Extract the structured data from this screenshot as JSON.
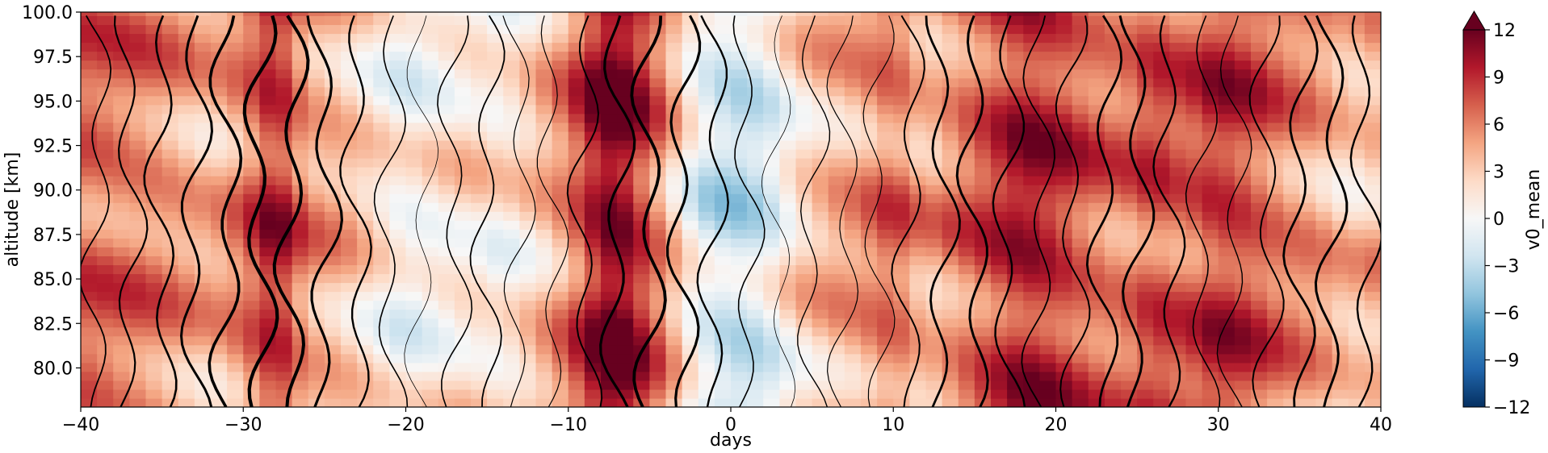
{
  "chart_data": {
    "type": "heatmap",
    "xlabel": "days",
    "ylabel": "altitude [km]",
    "colorbar_label": "v0_mean",
    "xlim": [
      -40,
      40
    ],
    "ylim": [
      77.8,
      100.0
    ],
    "x_ticks": [
      -40,
      -30,
      -20,
      -10,
      0,
      10,
      20,
      30,
      40
    ],
    "x_tick_labels": [
      "−40",
      "−30",
      "−20",
      "−10",
      "0",
      "10",
      "20",
      "30",
      "40"
    ],
    "y_ticks": [
      80.0,
      82.5,
      85.0,
      87.5,
      90.0,
      92.5,
      95.0,
      97.5,
      100.0
    ],
    "y_tick_labels": [
      "80.0",
      "82.5",
      "85.0",
      "87.5",
      "90.0",
      "92.5",
      "95.0",
      "97.5",
      "100.0"
    ],
    "colorbar_ticks": [
      -12,
      -9,
      -6,
      -3,
      0,
      3,
      6,
      9,
      12
    ],
    "colorbar_tick_labels": [
      "−12",
      "−9",
      "−6",
      "−3",
      "0",
      "3",
      "6",
      "9",
      "12"
    ],
    "colorbar_range": [
      -12,
      12
    ],
    "colorbar_extend": "max",
    "colormap": "RdBu_r",
    "colormap_stops": [
      "#053061",
      "#2166ac",
      "#4393c3",
      "#92c5de",
      "#d1e5f0",
      "#f7f7f7",
      "#fddbc7",
      "#f4a582",
      "#d6604d",
      "#b2182b",
      "#67001f"
    ],
    "contour_color": "#000000",
    "days": [
      -40,
      -36,
      -32,
      -30,
      -28,
      -26,
      -24,
      -22,
      -20,
      -18,
      -16,
      -14,
      -12,
      -10,
      -8,
      -7,
      -6,
      -4,
      -2,
      0,
      2,
      4,
      6,
      8,
      10,
      12,
      14,
      16,
      18,
      20,
      22,
      24,
      26,
      28,
      30,
      32,
      34,
      36,
      38,
      40
    ],
    "altitudes": [
      78,
      80,
      82,
      84,
      86,
      88,
      90,
      92,
      94,
      96,
      98,
      100
    ],
    "v0_mean_profile_by_day": [
      7,
      6,
      4,
      6,
      10,
      5,
      4,
      2,
      0,
      1,
      2,
      1,
      3,
      6,
      11,
      12,
      10,
      5,
      -1,
      -3,
      -2,
      2,
      4,
      5,
      7,
      4,
      6,
      8,
      10,
      9,
      7,
      6,
      8,
      7,
      9,
      8,
      6,
      5,
      3,
      4
    ],
    "wind_contour_profile_by_day": [
      2,
      4,
      6,
      8,
      9,
      7,
      5,
      3,
      1,
      -1,
      -3,
      -2,
      0,
      2,
      4,
      6,
      8,
      7,
      5,
      3,
      1,
      -1,
      -2,
      0,
      2,
      4,
      6,
      5,
      3,
      2,
      4,
      6,
      5,
      3,
      1,
      2,
      4,
      6,
      5,
      3
    ]
  }
}
